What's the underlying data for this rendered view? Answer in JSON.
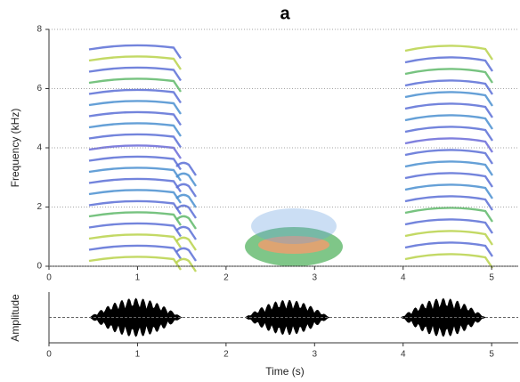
{
  "chart_data": [
    {
      "type": "spectrogram",
      "title": "a",
      "y_label": "Frequency (kHz)",
      "xlim": [
        0,
        5.3
      ],
      "xticks": [
        0,
        1,
        2,
        3,
        4,
        5
      ],
      "ylim": [
        0,
        8
      ],
      "yticks": [
        0,
        2,
        4,
        6,
        8
      ],
      "grid": true
    },
    {
      "type": "waveform",
      "y_label": "Amplitude",
      "x_label": "Time (s)",
      "xlim": [
        0,
        5.3
      ],
      "xticks": [
        0,
        1,
        2,
        3,
        4,
        5
      ]
    }
  ]
}
